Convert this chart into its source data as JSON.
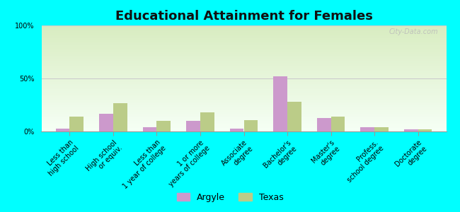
{
  "title": "Educational Attainment for Females",
  "categories": [
    "Less than\nhigh school",
    "High school\nor equiv.",
    "Less than\n1 year of college",
    "1 or more\nyears of college",
    "Associate\ndegree",
    "Bachelor's\ndegree",
    "Master's\ndegree",
    "Profess.\nschool degree",
    "Doctorate\ndegree"
  ],
  "argyle_values": [
    3,
    17,
    4,
    10,
    3,
    52,
    13,
    4,
    2
  ],
  "texas_values": [
    14,
    27,
    10,
    18,
    11,
    28,
    14,
    4,
    2
  ],
  "argyle_color": "#cc99cc",
  "texas_color": "#bbcc88",
  "background_top": "#d8ecc0",
  "background_bottom": "#f5fff5",
  "outer_bg": "#00ffff",
  "ylim": [
    0,
    100
  ],
  "yticks": [
    0,
    50,
    100
  ],
  "ytick_labels": [
    "0%",
    "50%",
    "100%"
  ],
  "watermark": "City-Data.com",
  "legend_labels": [
    "Argyle",
    "Texas"
  ],
  "title_fontsize": 13,
  "tick_fontsize": 7.0,
  "bar_width": 0.32
}
